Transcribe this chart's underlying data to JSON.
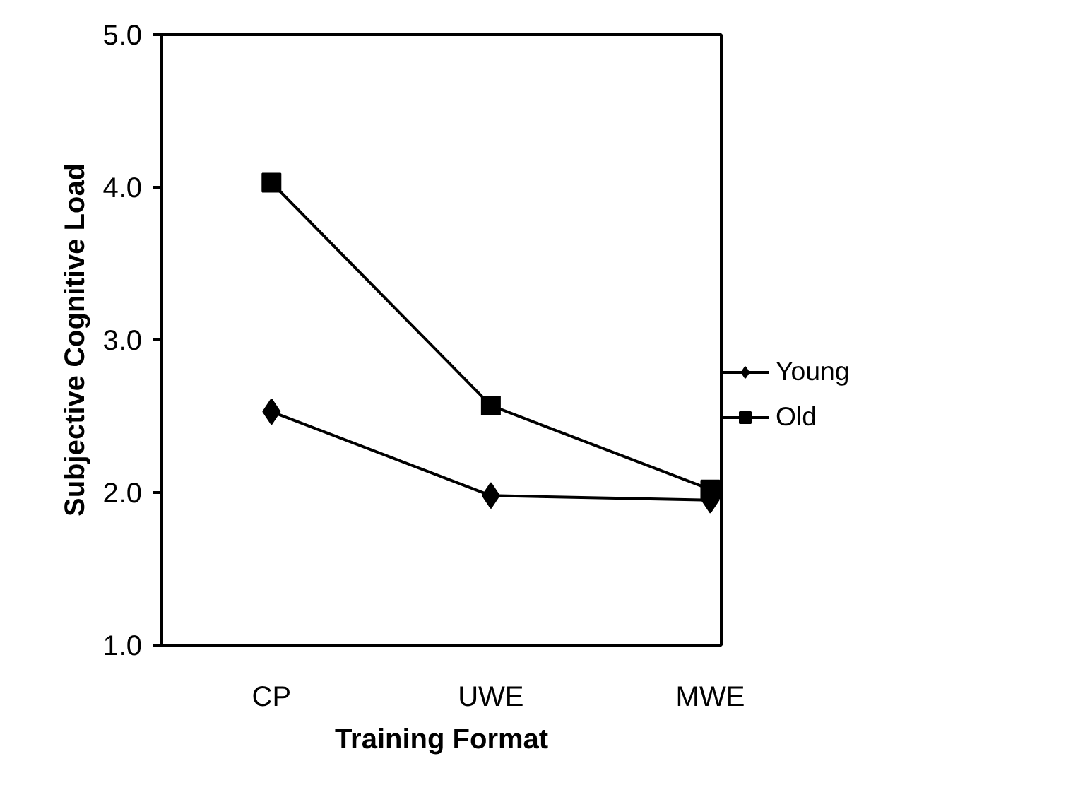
{
  "chart_data": {
    "type": "line",
    "xlabel": "Training Format",
    "ylabel": "Subjective Cognitive Load",
    "categories": [
      "CP",
      "UWE",
      "MWE"
    ],
    "series": [
      {
        "name": "Young",
        "color": "#000000",
        "marker": "diamond",
        "values": [
          2.53,
          1.98,
          1.95
        ]
      },
      {
        "name": "Old",
        "color": "#000000",
        "marker": "square",
        "values": [
          4.03,
          2.57,
          2.02
        ]
      }
    ],
    "ylim": [
      1,
      5
    ],
    "yticks": [
      {
        "value": 1,
        "label": "1.0"
      },
      {
        "value": 2,
        "label": "2.0"
      },
      {
        "value": 3,
        "label": "3.0"
      },
      {
        "value": 4,
        "label": "4.0"
      },
      {
        "value": 5,
        "label": "5.0"
      }
    ],
    "grid": false,
    "legend": "right",
    "line_style": "solid"
  }
}
